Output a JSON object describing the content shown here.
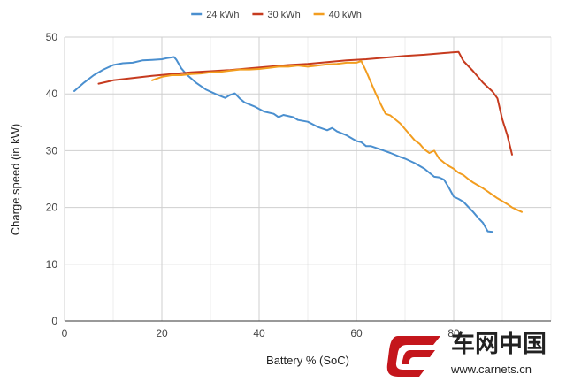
{
  "chart_data": {
    "type": "line",
    "xlabel": "Battery % (SoC)",
    "ylabel": "Charge speed (in kW)",
    "xlim": [
      0,
      100
    ],
    "ylim": [
      0,
      50
    ],
    "xticks": [
      0,
      20,
      40,
      60,
      80
    ],
    "yticks": [
      0,
      10,
      20,
      30,
      40,
      50
    ],
    "grid": "vertical-and-horizontal",
    "legend_position": "top-center",
    "series": [
      {
        "name": "24 kWh",
        "color": "#4a8fcf",
        "points": [
          [
            2,
            40.5
          ],
          [
            4,
            42
          ],
          [
            6,
            43.3
          ],
          [
            8,
            44.3
          ],
          [
            10,
            45.1
          ],
          [
            12,
            45.4
          ],
          [
            14,
            45.5
          ],
          [
            16,
            45.9
          ],
          [
            18,
            46
          ],
          [
            20,
            46.1
          ],
          [
            21,
            46.3
          ],
          [
            22.5,
            46.5
          ],
          [
            23,
            46
          ],
          [
            24,
            44.5
          ],
          [
            25,
            43.5
          ],
          [
            27,
            42
          ],
          [
            29,
            40.8
          ],
          [
            31,
            40
          ],
          [
            33,
            39.3
          ],
          [
            34,
            39.8
          ],
          [
            35,
            40.1
          ],
          [
            36,
            39.2
          ],
          [
            37,
            38.5
          ],
          [
            39,
            37.8
          ],
          [
            41,
            36.9
          ],
          [
            43,
            36.5
          ],
          [
            44,
            35.9
          ],
          [
            45,
            36.3
          ],
          [
            47,
            35.9
          ],
          [
            48,
            35.4
          ],
          [
            50,
            35.1
          ],
          [
            52,
            34.2
          ],
          [
            54,
            33.6
          ],
          [
            55,
            34
          ],
          [
            56,
            33.4
          ],
          [
            58,
            32.7
          ],
          [
            60,
            31.7
          ],
          [
            61,
            31.5
          ],
          [
            62,
            30.8
          ],
          [
            63,
            30.8
          ],
          [
            65,
            30.2
          ],
          [
            67,
            29.6
          ],
          [
            69,
            28.9
          ],
          [
            70,
            28.6
          ],
          [
            72,
            27.8
          ],
          [
            74,
            26.8
          ],
          [
            75,
            26.1
          ],
          [
            76,
            25.4
          ],
          [
            77,
            25.3
          ],
          [
            78,
            24.9
          ],
          [
            79,
            23.5
          ],
          [
            80,
            21.9
          ],
          [
            81,
            21.5
          ],
          [
            82,
            21
          ],
          [
            83,
            20.1
          ],
          [
            84,
            19.2
          ],
          [
            85,
            18.2
          ],
          [
            86,
            17.3
          ],
          [
            87,
            15.8
          ],
          [
            88,
            15.7
          ]
        ]
      },
      {
        "name": "30 kWh",
        "color": "#c63b1f",
        "points": [
          [
            7,
            41.8
          ],
          [
            10,
            42.4
          ],
          [
            14,
            42.8
          ],
          [
            18,
            43.2
          ],
          [
            22,
            43.5
          ],
          [
            26,
            43.8
          ],
          [
            30,
            44
          ],
          [
            34,
            44.2
          ],
          [
            38,
            44.5
          ],
          [
            42,
            44.8
          ],
          [
            46,
            45.1
          ],
          [
            50,
            45.3
          ],
          [
            54,
            45.6
          ],
          [
            58,
            45.9
          ],
          [
            62,
            46.1
          ],
          [
            66,
            46.4
          ],
          [
            70,
            46.7
          ],
          [
            74,
            46.9
          ],
          [
            78,
            47.2
          ],
          [
            81,
            47.4
          ],
          [
            82,
            45.8
          ],
          [
            84,
            44
          ],
          [
            86,
            42
          ],
          [
            88,
            40.4
          ],
          [
            89,
            39.2
          ],
          [
            90,
            35.5
          ],
          [
            91,
            32.8
          ],
          [
            92,
            29.3
          ]
        ]
      },
      {
        "name": "40 kWh",
        "color": "#f29d1f",
        "points": [
          [
            18,
            42.4
          ],
          [
            20,
            43
          ],
          [
            22,
            43.3
          ],
          [
            24,
            43.3
          ],
          [
            26,
            43.5
          ],
          [
            28,
            43.6
          ],
          [
            30,
            43.8
          ],
          [
            32,
            43.9
          ],
          [
            34,
            44.1
          ],
          [
            36,
            44.3
          ],
          [
            38,
            44.3
          ],
          [
            40,
            44.4
          ],
          [
            42,
            44.6
          ],
          [
            44,
            44.8
          ],
          [
            46,
            44.8
          ],
          [
            48,
            45
          ],
          [
            50,
            44.8
          ],
          [
            52,
            45
          ],
          [
            54,
            45.2
          ],
          [
            56,
            45.3
          ],
          [
            58,
            45.5
          ],
          [
            60,
            45.5
          ],
          [
            61,
            45.8
          ],
          [
            62,
            44
          ],
          [
            63,
            42
          ],
          [
            64,
            40
          ],
          [
            65,
            38.2
          ],
          [
            66,
            36.5
          ],
          [
            67,
            36.2
          ],
          [
            68,
            35.5
          ],
          [
            69,
            34.8
          ],
          [
            70,
            33.8
          ],
          [
            71,
            32.8
          ],
          [
            72,
            31.8
          ],
          [
            73,
            31.2
          ],
          [
            74,
            30.2
          ],
          [
            75,
            29.6
          ],
          [
            76,
            30
          ],
          [
            77,
            28.6
          ],
          [
            78,
            27.9
          ],
          [
            79,
            27.3
          ],
          [
            80,
            26.8
          ],
          [
            81,
            26.1
          ],
          [
            82,
            25.7
          ],
          [
            83,
            25
          ],
          [
            84,
            24.4
          ],
          [
            85,
            23.9
          ],
          [
            86,
            23.4
          ],
          [
            87,
            22.8
          ],
          [
            88,
            22.2
          ],
          [
            89,
            21.6
          ],
          [
            90,
            21.1
          ],
          [
            91,
            20.6
          ],
          [
            92,
            20
          ],
          [
            93,
            19.6
          ],
          [
            94,
            19.2
          ]
        ]
      }
    ]
  },
  "watermark": {
    "brand_cn": "车网中国",
    "url": "www.carnets.cn"
  }
}
